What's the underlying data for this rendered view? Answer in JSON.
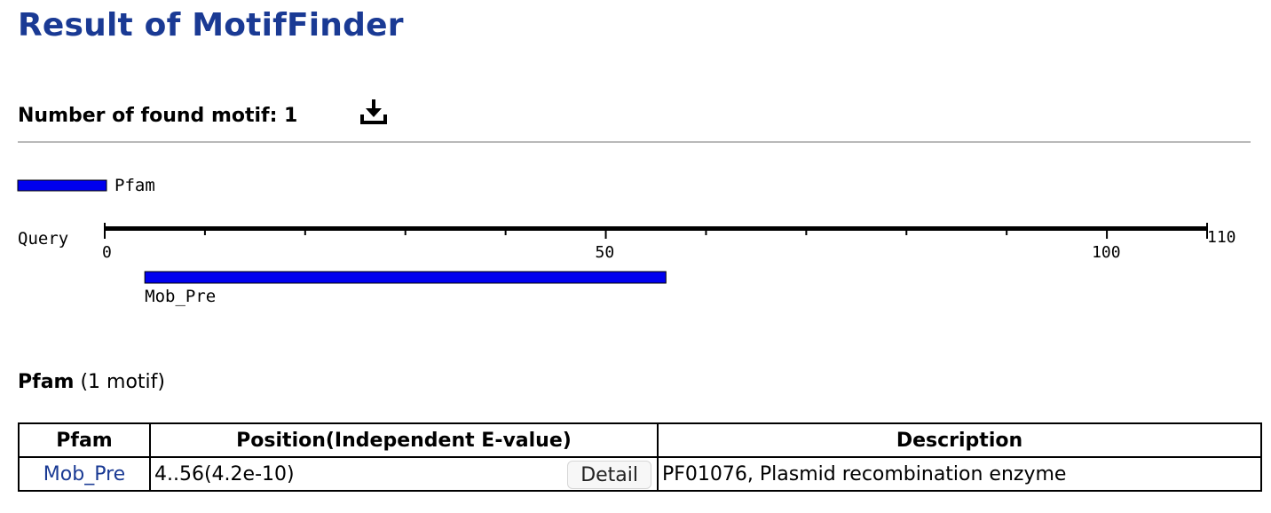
{
  "page": {
    "title": "Result of MotifFinder"
  },
  "summary": {
    "found_label": "Number of found motif: 1"
  },
  "icons": {
    "download": "download-icon"
  },
  "colors": {
    "title": "#1a3a94",
    "motif_bar": "#0000ee",
    "link": "#1a3a94"
  },
  "diagram": {
    "legend_label": "Pfam",
    "query_label": "Query",
    "query_length": 110,
    "tick_labels": [
      "0",
      "50",
      "100",
      "110"
    ],
    "motif": {
      "name": "Mob_Pre",
      "start": 4,
      "end": 56
    }
  },
  "section": {
    "db": "Pfam",
    "count_text": "(1 motif)"
  },
  "table": {
    "headers": [
      "Pfam",
      "Position(Independent E-value)",
      "Description"
    ],
    "rows": [
      {
        "pfam": "Mob_Pre",
        "position": "4..56(4.2e-10)",
        "detail": "Detail",
        "description": "PF01076, Plasmid recombination enzyme"
      }
    ]
  }
}
